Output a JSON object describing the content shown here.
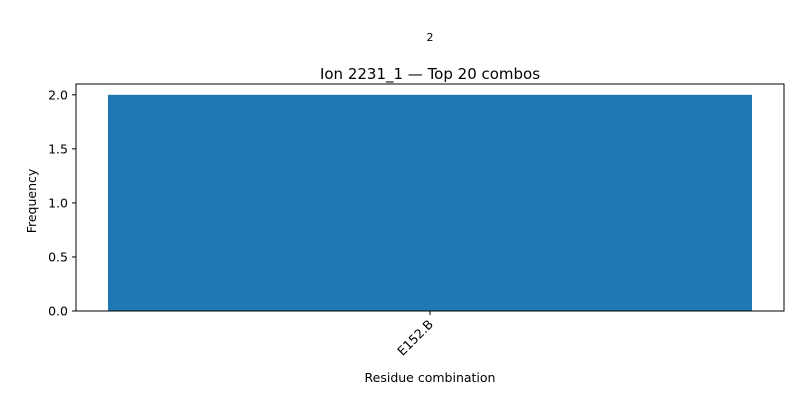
{
  "colors": {
    "bar": "#1f77b4",
    "axis": "#000000",
    "background": "#ffffff"
  },
  "chart_data": {
    "type": "bar",
    "title": "Ion 2231_1 — Top 20 combos",
    "xlabel": "Residue combination",
    "ylabel": "Frequency",
    "categories": [
      "E152.B"
    ],
    "values": [
      2
    ],
    "data_labels": [
      "2"
    ],
    "ylim": [
      0,
      2.1
    ],
    "yticks": [
      0.0,
      0.5,
      1.0,
      1.5,
      2.0
    ],
    "ytick_labels": [
      "0.0",
      "0.5",
      "1.0",
      "1.5",
      "2.0"
    ],
    "xtick_rotation": "45",
    "grid": false,
    "legend": "none"
  }
}
